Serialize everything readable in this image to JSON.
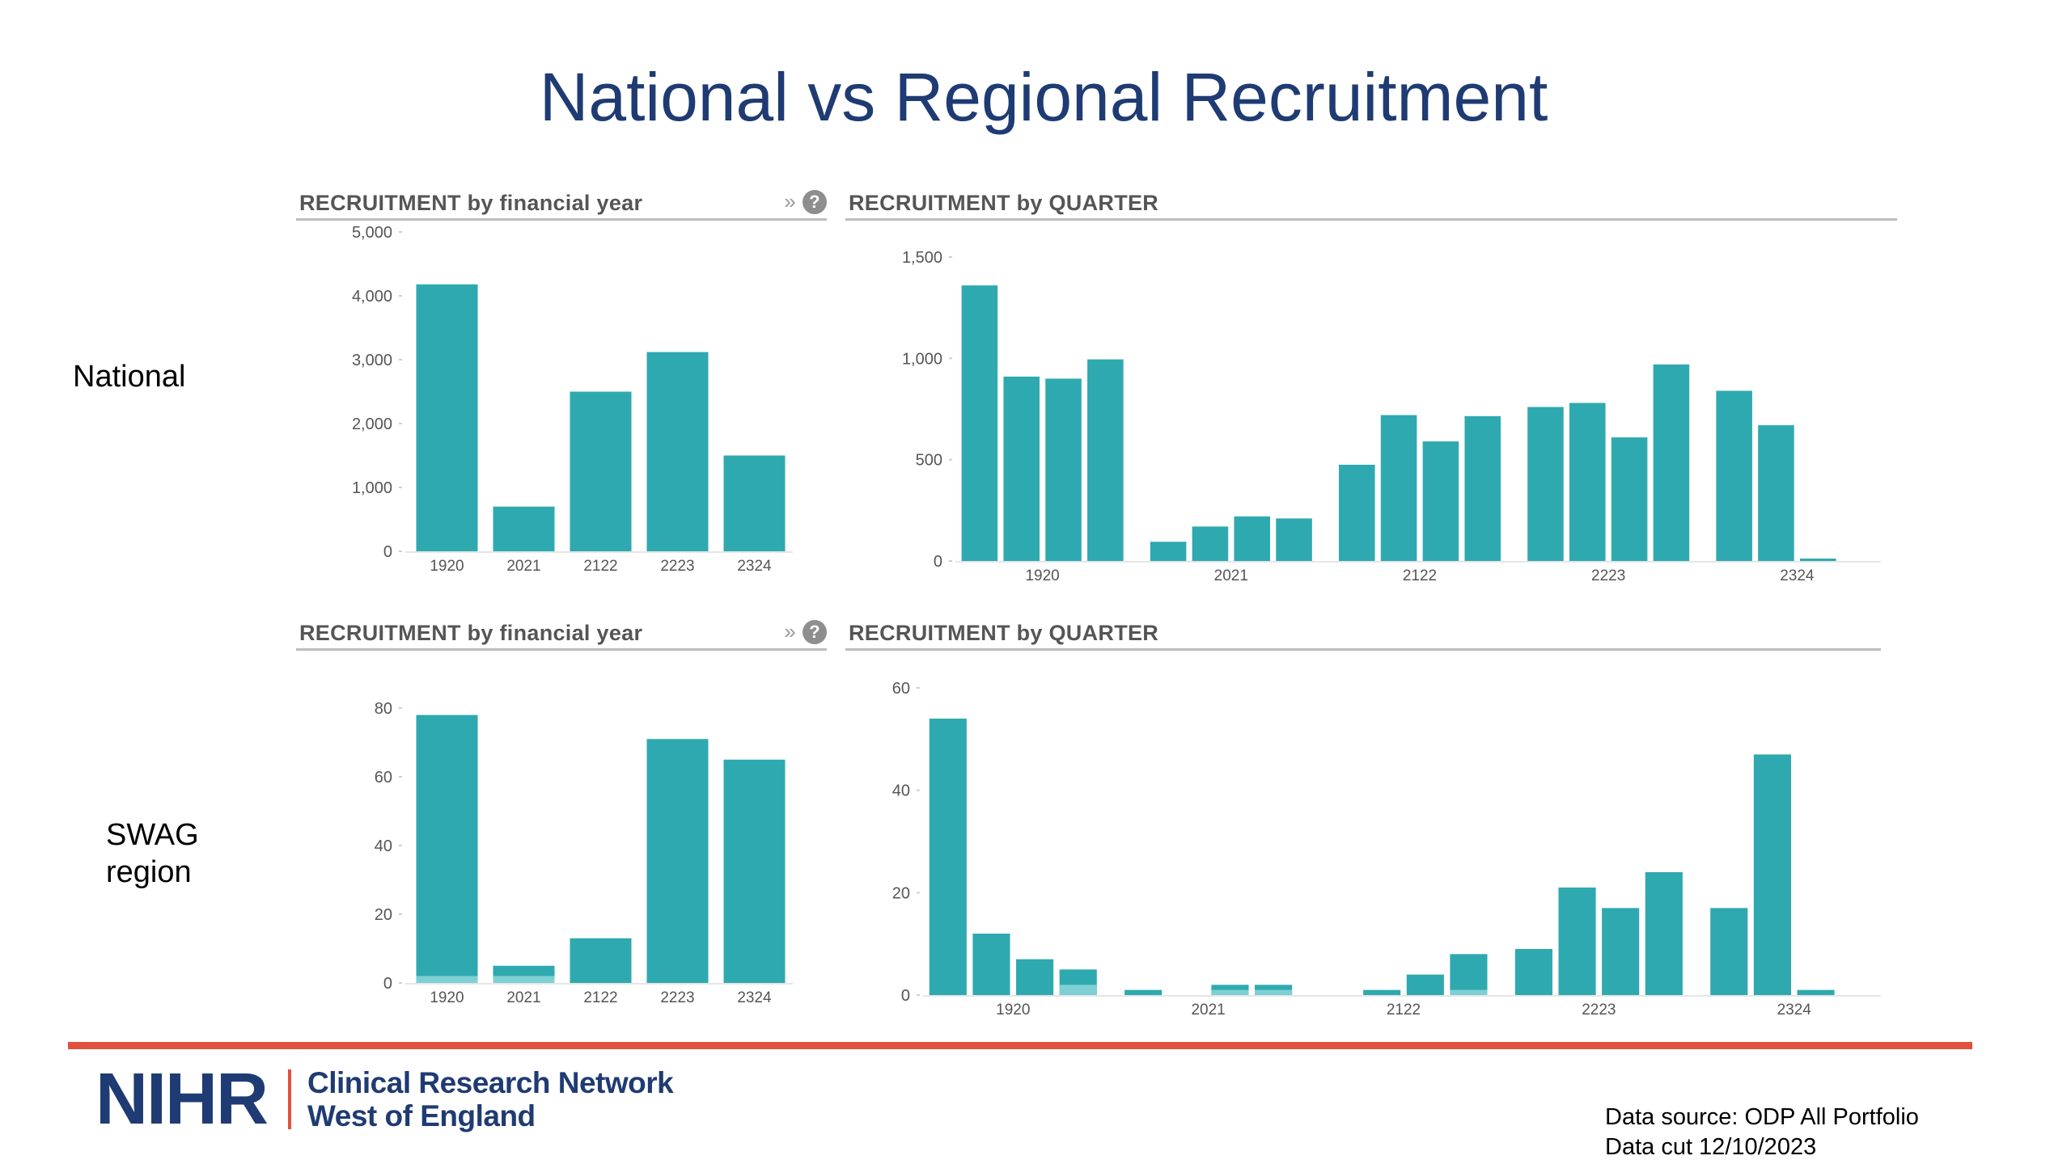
{
  "title": "National vs Regional Recruitment",
  "rows": {
    "national": {
      "label_lines": [
        "National"
      ]
    },
    "swag": {
      "label_lines": [
        "SWAG",
        "region"
      ]
    }
  },
  "panels": {
    "fy_header": "RECRUITMENT by financial year",
    "quarter_header": "RECRUITMENT by QUARTER",
    "expand_icon": "double-chevron-right-icon",
    "help_icon": "question-circle-icon",
    "help_glyph": "?"
  },
  "colors": {
    "bar": "#2fa9b0",
    "bar_secondary": "#7fd0d4",
    "title": "#1f3b73",
    "accent": "#e0523f"
  },
  "chart_data": [
    {
      "id": "national-fy",
      "type": "bar",
      "title": "RECRUITMENT by financial year",
      "categories": [
        "1920",
        "2021",
        "2122",
        "2223",
        "2324"
      ],
      "ylim": [
        0,
        5000
      ],
      "yticks": [
        0,
        1000,
        2000,
        3000,
        4000,
        5000
      ],
      "ytick_labels": [
        "0",
        "1,000",
        "2,000",
        "3,000",
        "4,000",
        "5,000"
      ],
      "series": [
        {
          "values": [
            4180,
            700,
            2500,
            3120,
            1500
          ]
        }
      ]
    },
    {
      "id": "national-quarter",
      "type": "bar",
      "title": "RECRUITMENT by QUARTER",
      "groups": [
        "1920",
        "2021",
        "2122",
        "2223",
        "2324"
      ],
      "xtick_labels": [
        "1920",
        "2021",
        "2122",
        "2223",
        "2324"
      ],
      "ylim": [
        0,
        1500
      ],
      "yticks": [
        0,
        500,
        1000,
        1500
      ],
      "ytick_labels": [
        "0",
        "500",
        "1,000",
        "1,500"
      ],
      "series": [
        {
          "values": [
            1360,
            910,
            900,
            995,
            95,
            170,
            220,
            210,
            475,
            720,
            590,
            715,
            760,
            780,
            610,
            970,
            840,
            670,
            10
          ]
        }
      ]
    },
    {
      "id": "swag-fy",
      "type": "bar",
      "title": "RECRUITMENT by financial year",
      "categories": [
        "1920",
        "2021",
        "2122",
        "2223",
        "2324"
      ],
      "ylim": [
        0,
        80
      ],
      "yticks": [
        0,
        20,
        40,
        60,
        80
      ],
      "ytick_labels": [
        "0",
        "20",
        "40",
        "60",
        "80"
      ],
      "series": [
        {
          "values": [
            78,
            5,
            13,
            71,
            65
          ]
        },
        {
          "values": [
            2,
            2,
            0,
            0,
            0
          ]
        }
      ]
    },
    {
      "id": "swag-quarter",
      "type": "bar",
      "title": "RECRUITMENT by QUARTER",
      "groups": [
        "1920",
        "2021",
        "2122",
        "2223",
        "2324"
      ],
      "xtick_labels": [
        "1920",
        "2021",
        "2122",
        "2223",
        "2324"
      ],
      "ylim": [
        0,
        60
      ],
      "yticks": [
        0,
        20,
        40,
        60
      ],
      "ytick_labels": [
        "0",
        "20",
        "40",
        "60"
      ],
      "series": [
        {
          "values": [
            54,
            12,
            7,
            5,
            1,
            0,
            2,
            2,
            0,
            1,
            4,
            8,
            9,
            21,
            17,
            24,
            17,
            47,
            1
          ]
        },
        {
          "values": [
            0,
            0,
            0,
            2,
            0,
            0,
            1,
            1,
            0,
            0,
            0,
            1,
            0,
            0,
            0,
            0,
            0,
            0,
            0
          ]
        }
      ]
    }
  ],
  "footer": {
    "logo_mark": "NIHR",
    "logo_lines": [
      "Clinical Research Network",
      "West of England"
    ],
    "source_lines": [
      "Data source: ODP All Portfolio",
      "Data cut 12/10/2023"
    ]
  }
}
